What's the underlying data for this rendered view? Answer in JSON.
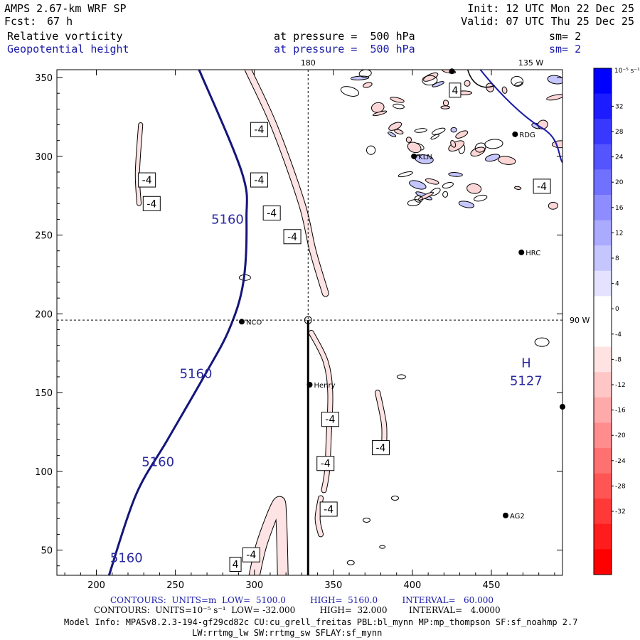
{
  "header": {
    "model": "AMPS 2.67-km WRF SP",
    "fcst_label": "Fcst:",
    "fcst_value": "67 h",
    "init": "Init: 12 UTC Mon 22 Dec 25",
    "valid": "Valid: 07 UTC Thu 25 Dec 25",
    "field1_name": "Relative vorticity",
    "field1_level": "at pressure =  500 hPa",
    "field1_sm": "sm= 2",
    "field2_name": "Geopotential height",
    "field2_level": "at pressure =  500 hPa",
    "field2_sm": "sm= 2"
  },
  "map_labels": {
    "lon_top_180": "180",
    "lon_top_135": "135 W",
    "lon_right_90": "90 W"
  },
  "stations": [
    {
      "name": "NCO",
      "x": 292,
      "y": 195
    },
    {
      "name": "Henry",
      "x": 335,
      "y": 155
    },
    {
      "name": "HRC",
      "x": 469,
      "y": 239
    },
    {
      "name": "AG2",
      "x": 459,
      "y": 72
    },
    {
      "name": "RDG",
      "x": 465,
      "y": 314
    },
    {
      "name": "KLN",
      "x": 401,
      "y": 300
    },
    {
      "name": "",
      "x": 425,
      "y": 354
    },
    {
      "name": "",
      "x": 495,
      "y": 141
    }
  ],
  "extremum": {
    "letter": "H",
    "value": "5127",
    "x": 472,
    "y": 157
  },
  "colorbar": {
    "title": "10⁻⁵ s⁻¹",
    "ticks": [
      "32",
      "28",
      "24",
      "20",
      "16",
      "12",
      "8",
      "4",
      "0",
      "-4",
      "-8",
      "-12",
      "-16",
      "-20",
      "-24",
      "-28",
      "-32"
    ],
    "colors": [
      "#0000ff",
      "#1c1cff",
      "#3838ff",
      "#5555ff",
      "#7171ff",
      "#8d8dff",
      "#aaaaff",
      "#c6c6ff",
      "#e3e3ff",
      "#ffffff",
      "#ffffff",
      "#ffe3e3",
      "#ffc6c6",
      "#ffaaaa",
      "#ff8d8d",
      "#ff7171",
      "#ff5555",
      "#ff3838",
      "#ff1c1c",
      "#ff0000"
    ]
  },
  "footer": {
    "line1": "CONTOURS:  UNITS=m  LOW=  5100.0         HIGH=  5160.0         INTERVAL=   60.000",
    "line2": "CONTOURS:  UNITS=10⁻⁵ s⁻¹  LOW= -32.000         HIGH=  32.000        INTERVAL=   4.0000",
    "line3": "Model Info: MPASv8.2.3-194-gf29cd82c CU:cu_grell_freitas PBL:bl_mynn MP:mp_thompson SF:sf_noahmp 2.7",
    "line4": "LW:rrtmg_lw SW:rrtmg_sw SFLAY:sf_mynn"
  },
  "chart_data": {
    "type": "contour",
    "xlim": [
      175,
      495
    ],
    "ylim": [
      34,
      355
    ],
    "xticks": [
      200,
      250,
      300,
      350,
      400,
      450
    ],
    "yticks": [
      50,
      100,
      150,
      200,
      250,
      300,
      350
    ],
    "crosshair": {
      "x": 334,
      "y": 196
    },
    "cross_section_line": [
      [
        334,
        196
      ],
      [
        334,
        34
      ]
    ],
    "height_contour": {
      "level": "5160",
      "points": [
        [
          265,
          355
        ],
        [
          292,
          290
        ],
        [
          295,
          260
        ],
        [
          293,
          220
        ],
        [
          284,
          190
        ],
        [
          268,
          160
        ],
        [
          245,
          120
        ],
        [
          225,
          85
        ],
        [
          208,
          34
        ]
      ],
      "labels": [
        {
          "text": "5160",
          "x": 283,
          "y": 260
        },
        {
          "text": "5160",
          "x": 263,
          "y": 162
        },
        {
          "text": "5160",
          "x": 239,
          "y": 106
        },
        {
          "text": "5160",
          "x": 219,
          "y": 45
        }
      ]
    },
    "vorticity_bands": [
      {
        "level": -4,
        "points": [
          [
            296,
            355
          ],
          [
            313,
            318
          ],
          [
            330,
            270
          ],
          [
            337,
            240
          ],
          [
            345,
            213
          ]
        ],
        "width": 8
      },
      {
        "level": -4,
        "points": [
          [
            228,
            320
          ],
          [
            226,
            290
          ],
          [
            227,
            270
          ]
        ],
        "width": 5
      },
      {
        "level": -4,
        "points": [
          [
            336,
            188
          ],
          [
            345,
            170
          ],
          [
            348,
            150
          ],
          [
            347,
            120
          ],
          [
            346,
            100
          ],
          [
            344,
            88
          ]
        ],
        "width": 6
      },
      {
        "level": -4,
        "points": [
          [
            378,
            150
          ],
          [
            382,
            130
          ],
          [
            382,
            115
          ]
        ],
        "width": 6
      },
      {
        "level": -4,
        "points": [
          [
            342,
            83
          ],
          [
            340,
            70
          ],
          [
            342,
            60
          ]
        ],
        "width": 6
      },
      {
        "level": -4,
        "points": [
          [
            300,
            34
          ],
          [
            305,
            55
          ],
          [
            315,
            80
          ],
          [
            317,
            70
          ],
          [
            318,
            34
          ]
        ],
        "width": 14
      }
    ],
    "vorticity_labels": [
      {
        "text": "-4",
        "x": 303,
        "y": 317
      },
      {
        "text": "-4",
        "x": 303,
        "y": 285
      },
      {
        "text": "-4",
        "x": 311,
        "y": 264
      },
      {
        "text": "-4",
        "x": 324,
        "y": 249
      },
      {
        "text": "-4",
        "x": 232,
        "y": 285
      },
      {
        "text": "-4",
        "x": 235,
        "y": 270
      },
      {
        "text": "4",
        "x": 427,
        "y": 342
      },
      {
        "text": "-4",
        "x": 482,
        "y": 281
      },
      {
        "text": "-4",
        "x": 348,
        "y": 133
      },
      {
        "text": "-4",
        "x": 345,
        "y": 105
      },
      {
        "text": "-4",
        "x": 347,
        "y": 76
      },
      {
        "text": "-4",
        "x": 380,
        "y": 115
      },
      {
        "text": "-4",
        "x": 298,
        "y": 47
      },
      {
        "text": "4",
        "x": 288,
        "y": 41
      }
    ]
  }
}
